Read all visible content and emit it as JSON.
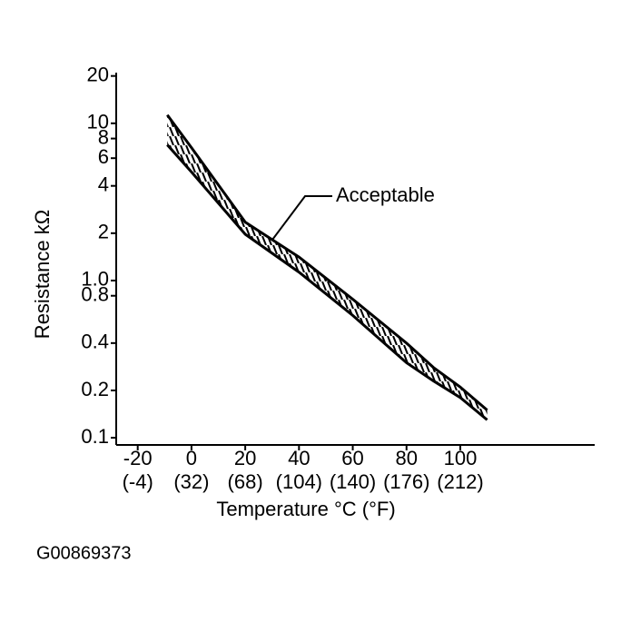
{
  "chart_data": {
    "type": "band",
    "xlabel": "Temperature °C (°F)",
    "ylabel": "Resistance kΩ",
    "annotation": "Acceptable",
    "footer": "G00869373",
    "x": [
      -9,
      0,
      20,
      40,
      60,
      80,
      90,
      100,
      110
    ],
    "series": [
      {
        "color": "#000000",
        "values": [
          11.3,
          7.0,
          2.35,
          1.41,
          0.76,
          0.4,
          0.28,
          0.21,
          0.15
        ]
      },
      {
        "color": "#000000",
        "values": [
          7.3,
          4.9,
          1.97,
          1.13,
          0.6,
          0.3,
          0.23,
          0.18,
          0.13
        ]
      }
    ],
    "xlim": [
      -28,
      150
    ],
    "xticks": [
      -20,
      0,
      20,
      40,
      60,
      80,
      100
    ],
    "xtick_labels_f": [
      "(-4)",
      "(32)",
      "(68)",
      "(104)",
      "(140)",
      "(176)",
      "(212)"
    ],
    "ylim": [
      0.09,
      21
    ],
    "ylog": true,
    "yticks": [
      0.1,
      0.2,
      0.4,
      0.8,
      {
        "value": 1,
        "label": "1.0"
      },
      2,
      4,
      6,
      8,
      10,
      20
    ],
    "grid": false
  }
}
